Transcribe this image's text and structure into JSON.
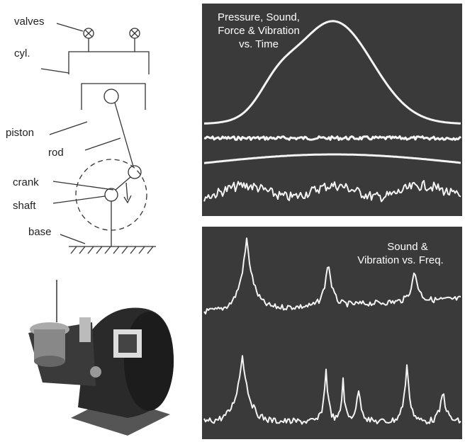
{
  "diagram": {
    "labels": [
      "valves",
      "cyl.",
      "piston",
      "rod",
      "crank",
      "shaft",
      "base"
    ]
  },
  "panels": [
    {
      "title": [
        "Pressure, Sound,",
        "Force & Vibration",
        "vs. Time"
      ]
    },
    {
      "title": [
        "Sound &",
        "Vibration vs. Freq."
      ]
    }
  ]
}
